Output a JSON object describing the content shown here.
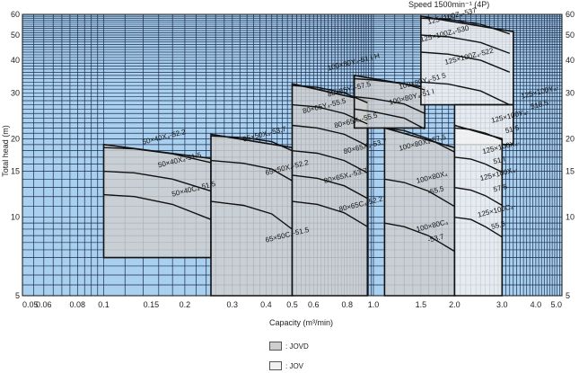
{
  "chart_data": {
    "type": "area",
    "title": "",
    "speed_label": "Speed  1500min⁻¹ (4P)",
    "xlabel": "Capacity  (m³/min)",
    "ylabel": "Total head  (m)",
    "xscale": "log",
    "yscale": "log",
    "xlim": [
      0.05,
      5.0
    ],
    "ylim": [
      5,
      60
    ],
    "grid": true,
    "xticks": [
      "0.05",
      "0.06",
      "0.08",
      "0.1",
      "0.15",
      "0.2",
      "0.3",
      "0.4",
      "0.5",
      "0.6",
      "0.8",
      "1.0",
      "1.5",
      "2.0",
      "3.0",
      "4.0",
      "5.0"
    ],
    "yticks": [
      "5",
      "10",
      "15",
      "20",
      "30",
      "40",
      "50",
      "60"
    ],
    "colors": {
      "background": "#a9d0ef",
      "grid": "#1b2a4a",
      "jovd": "#cfcfcf",
      "jov": "#f1f1f1"
    },
    "legend": [
      {
        "name": ": JOVD",
        "color": "#cfcfcf"
      },
      {
        "name": ": JOV",
        "color": "#f1f1f1"
      }
    ],
    "series": [
      {
        "name": "50×40X₄-52.2",
        "series": "JOVD",
        "x": [
          0.1,
          0.13,
          0.18,
          0.25
        ],
        "y": [
          18.5,
          18.3,
          17.5,
          16.2
        ]
      },
      {
        "name": "50×40X₄-51.5",
        "series": "JOVD",
        "x": [
          0.1,
          0.13,
          0.18,
          0.25
        ],
        "y": [
          15.0,
          14.8,
          14.0,
          12.6
        ]
      },
      {
        "name": "50×40C₄-51.5",
        "series": "JOVD",
        "x": [
          0.1,
          0.13,
          0.18,
          0.25
        ],
        "y": [
          12.2,
          12.0,
          11.2,
          9.8
        ]
      },
      {
        "name": "65×50X₄-53.7",
        "series": "JOVD",
        "x": [
          0.25,
          0.33,
          0.42,
          0.5
        ],
        "y": [
          20.5,
          20.2,
          19.5,
          18.0
        ]
      },
      {
        "name": "65×50X₄-52.2",
        "series": "JOVD",
        "x": [
          0.25,
          0.33,
          0.42,
          0.5
        ],
        "y": [
          16.5,
          16.1,
          15.3,
          13.8
        ]
      },
      {
        "name": "65×50C₄-51.5",
        "series": "JOVD",
        "x": [
          0.25,
          0.33,
          0.42,
          0.5
        ],
        "y": [
          11.5,
          11.1,
          10.3,
          9.0
        ]
      },
      {
        "name": "80×65Y₄-57.5",
        "series": "JOVD",
        "x": [
          0.5,
          0.62,
          0.78,
          0.95
        ],
        "y": [
          32.0,
          31.5,
          30.0,
          27.5
        ]
      },
      {
        "name": "80×65Y₄-55.5",
        "series": "JOVD",
        "x": [
          0.5,
          0.62,
          0.78,
          0.95
        ],
        "y": [
          27.0,
          26.5,
          25.0,
          22.8
        ]
      },
      {
        "name": "80×65X₄-55.5",
        "series": "JOVD",
        "x": [
          0.5,
          0.62,
          0.78,
          0.95
        ],
        "y": [
          22.5,
          22.0,
          20.8,
          18.8
        ]
      },
      {
        "name": "80×65X₄-53.7",
        "series": "JOVD",
        "x": [
          0.5,
          0.62,
          0.78,
          0.95
        ],
        "y": [
          18.0,
          17.6,
          16.5,
          14.8
        ]
      },
      {
        "name": "80×65X₄-53.7",
        "series": "JOVD",
        "x": [
          0.5,
          0.62,
          0.78,
          0.95
        ],
        "y": [
          14.5,
          14.1,
          13.2,
          11.8
        ]
      },
      {
        "name": "80×65C₄-52.2",
        "series": "JOVD",
        "x": [
          0.5,
          0.62,
          0.78,
          0.95
        ],
        "y": [
          11.5,
          11.2,
          10.4,
          9.2
        ]
      },
      {
        "name": "100×80Y₄-51 I H",
        "series": "JOVD",
        "x": [
          0.85,
          1.0,
          1.3,
          1.55
        ],
        "y": [
          34.0,
          33.6,
          32.5,
          30.8
        ]
      },
      {
        "name": "100×80Y₄-51 5",
        "series": "JOVD",
        "x": [
          0.85,
          1.0,
          1.3,
          1.55
        ],
        "y": [
          29.0,
          28.5,
          27.2,
          25.0
        ]
      },
      {
        "name": "100×80Y₄-51 I",
        "series": "JOVD",
        "x": [
          0.85,
          1.0,
          1.3,
          1.55
        ],
        "y": [
          26.0,
          25.4,
          24.0,
          21.8
        ]
      },
      {
        "name": "100×80X₄-57.5",
        "series": "JOVD",
        "x": [
          1.1,
          1.3,
          1.6,
          2.0
        ],
        "y": [
          22.0,
          21.5,
          20.0,
          17.8
        ]
      },
      {
        "name": "100×80X₄-55.5",
        "series": "JOVD",
        "x": [
          1.1,
          1.3,
          1.6,
          2.0
        ],
        "y": [
          14.0,
          13.6,
          12.6,
          11.0
        ]
      },
      {
        "name": "100×80C₄-53.7",
        "series": "JOVD",
        "x": [
          1.1,
          1.3,
          1.6,
          2.0
        ],
        "y": [
          9.5,
          9.2,
          8.5,
          7.4
        ]
      },
      {
        "name": "125×100Z₄-537",
        "series": "JOV",
        "x": [
          1.5,
          1.9,
          2.5,
          3.2
        ],
        "y": [
          58.0,
          57.5,
          55.0,
          50.5
        ]
      },
      {
        "name": "125×100Z₄-530",
        "series": "JOV",
        "x": [
          1.5,
          1.9,
          2.5,
          3.2
        ],
        "y": [
          50.0,
          49.2,
          46.8,
          42.5
        ]
      },
      {
        "name": "125×100Z₄-522",
        "series": "JOV",
        "x": [
          1.5,
          1.9,
          2.5,
          3.2
        ],
        "y": [
          43.0,
          42.2,
          40.0,
          36.0
        ]
      },
      {
        "name": "125×100Y₄-518.5",
        "series": "JOV",
        "x": [
          1.5,
          1.9,
          2.5,
          3.2
        ],
        "y": [
          33.0,
          32.4,
          30.5,
          27.0
        ]
      },
      {
        "name": "125×100Y₄-51 5",
        "series": "JOV",
        "x": [
          2.0,
          2.3,
          2.6,
          3.0
        ],
        "y": [
          22.0,
          21.7,
          21.0,
          19.8
        ]
      },
      {
        "name": "125×100X₄-51 I",
        "series": "JOV",
        "x": [
          2.0,
          2.3,
          2.6,
          3.0
        ],
        "y": [
          17.0,
          16.7,
          16.0,
          14.9
        ]
      },
      {
        "name": "125×100X₄-57.5",
        "series": "JOV",
        "x": [
          2.0,
          2.3,
          2.6,
          3.0
        ],
        "y": [
          13.0,
          12.7,
          12.1,
          11.1
        ]
      },
      {
        "name": "125×100C₄-55.5",
        "series": "JOV",
        "x": [
          2.0,
          2.3,
          2.6,
          3.0
        ],
        "y": [
          10.0,
          9.8,
          9.2,
          8.4
        ]
      }
    ],
    "annotations": [
      {
        "text": "125×100Z₄-537",
        "x": 1.6,
        "y": 55.0
      },
      {
        "text": "125×100Z₄-530",
        "x": 1.5,
        "y": 47.0
      },
      {
        "text": "100×80Y₄-51 I H",
        "x": 0.68,
        "y": 36.5
      },
      {
        "text": "125×100Z₄-522",
        "x": 1.85,
        "y": 38.5
      },
      {
        "text": "100×80Y₄-51 5",
        "x": 1.25,
        "y": 31.0
      },
      {
        "text": "125×100Y₄-",
        "x": 3.55,
        "y": 28.5
      },
      {
        "text": "518.5",
        "x": 3.85,
        "y": 26.0
      },
      {
        "text": "80×65Y₄-57.5",
        "x": 0.68,
        "y": 29.0
      },
      {
        "text": "100×80Y₄-51 I",
        "x": 1.15,
        "y": 27.0
      },
      {
        "text": "80×65Y₄-55.5",
        "x": 0.55,
        "y": 25.0
      },
      {
        "text": "125×100Y₄-",
        "x": 2.75,
        "y": 23.0
      },
      {
        "text": "51 5",
        "x": 3.1,
        "y": 21.0
      },
      {
        "text": "80×65X₄-55.5",
        "x": 0.72,
        "y": 22.0
      },
      {
        "text": "50×40X₄-52.2",
        "x": 0.14,
        "y": 19.0
      },
      {
        "text": "65×50X₄-53.7",
        "x": 0.33,
        "y": 19.5
      },
      {
        "text": "80×65X₄-53.7",
        "x": 0.78,
        "y": 17.5
      },
      {
        "text": "100×80X₄-57.5",
        "x": 1.25,
        "y": 18.0
      },
      {
        "text": "125×100X₄-",
        "x": 2.55,
        "y": 17.5
      },
      {
        "text": "51 I",
        "x": 2.8,
        "y": 16.0
      },
      {
        "text": "50×40X₄-51.5",
        "x": 0.16,
        "y": 15.5
      },
      {
        "text": "65×50X₄-52.2",
        "x": 0.4,
        "y": 14.5
      },
      {
        "text": "80×65X₄-53.7",
        "x": 0.66,
        "y": 13.5
      },
      {
        "text": "125×100X₄-",
        "x": 2.5,
        "y": 13.8
      },
      {
        "text": "57.5",
        "x": 2.8,
        "y": 12.5
      },
      {
        "text": "100×80X₄",
        "x": 1.45,
        "y": 13.5
      },
      {
        "text": "-55.5",
        "x": 1.6,
        "y": 12.2
      },
      {
        "text": "50×40C₄-51.5",
        "x": 0.18,
        "y": 12.0
      },
      {
        "text": "80×65C₄-52.2",
        "x": 0.75,
        "y": 10.5
      },
      {
        "text": "125×100C₄-",
        "x": 2.45,
        "y": 10.0
      },
      {
        "text": "55.5",
        "x": 2.75,
        "y": 9.0
      },
      {
        "text": "100×80C₄",
        "x": 1.45,
        "y": 8.8
      },
      {
        "text": "-53.7",
        "x": 1.6,
        "y": 8.0
      },
      {
        "text": "65×50C₄-51.5",
        "x": 0.4,
        "y": 8.0
      }
    ],
    "regions": [
      {
        "series": "JOVD",
        "name": "50×40",
        "poly": [
          [
            0.1,
            19.0
          ],
          [
            0.25,
            16.8
          ],
          [
            0.25,
            7.0
          ],
          [
            0.1,
            7.0
          ]
        ]
      },
      {
        "series": "JOVD",
        "name": "65×50",
        "poly": [
          [
            0.25,
            20.8
          ],
          [
            0.5,
            18.5
          ],
          [
            0.5,
            5.0
          ],
          [
            0.25,
            5.0
          ]
        ]
      },
      {
        "series": "JOVD",
        "name": "80×65",
        "poly": [
          [
            0.5,
            32.5
          ],
          [
            0.95,
            28.0
          ],
          [
            0.95,
            5.0
          ],
          [
            0.5,
            5.0
          ]
        ]
      },
      {
        "series": "JOVD",
        "name": "100×80Y",
        "poly": [
          [
            0.85,
            35.0
          ],
          [
            1.55,
            31.5
          ],
          [
            1.55,
            22.0
          ],
          [
            0.85,
            22.0
          ]
        ]
      },
      {
        "series": "JOVD",
        "name": "100×80X/C",
        "poly": [
          [
            1.1,
            22.0
          ],
          [
            2.0,
            18.5
          ],
          [
            2.0,
            5.0
          ],
          [
            1.1,
            5.0
          ]
        ]
      },
      {
        "series": "JOV",
        "name": "125×100Z",
        "poly": [
          [
            1.5,
            59.0
          ],
          [
            3.3,
            51.5
          ],
          [
            3.3,
            27.0
          ],
          [
            1.5,
            27.0
          ]
        ]
      },
      {
        "series": "JOV",
        "name": "125×100Y",
        "poly": [
          [
            2.0,
            27.0
          ],
          [
            3.3,
            27.0
          ],
          [
            3.3,
            19.0
          ],
          [
            2.0,
            19.0
          ]
        ]
      },
      {
        "series": "JOV",
        "name": "125×100X/C",
        "poly": [
          [
            2.0,
            22.5
          ],
          [
            3.0,
            20.0
          ],
          [
            3.0,
            5.0
          ],
          [
            2.0,
            5.0
          ]
        ]
      }
    ]
  }
}
